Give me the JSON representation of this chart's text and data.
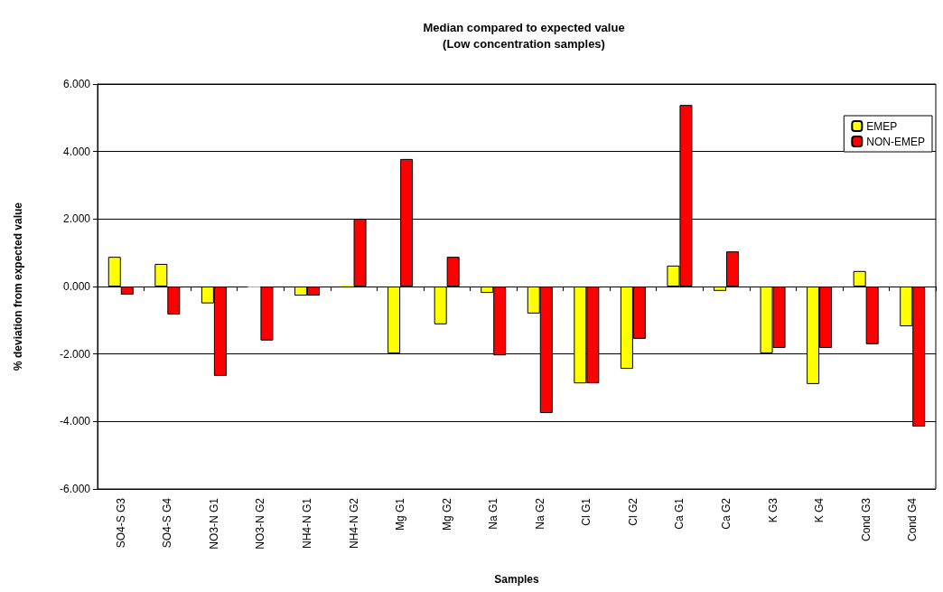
{
  "chart_data": {
    "type": "bar",
    "title": "Median compared to expected value\n(Low concentration samples)",
    "xlabel": "Samples",
    "ylabel": "% deviation from expected value",
    "categories": [
      "SO4-S G3",
      "SO4-S G4",
      "NO3-N G1",
      "NO3-N G2",
      "NH4-N G1",
      "NH4-N G2",
      "Mg G1",
      "Mg G2",
      "Na G1",
      "Na G2",
      "Cl G1",
      "Cl G2",
      "Ca G1",
      "Ca G2",
      "K G3",
      "K G4",
      "Cond G3",
      "Cond G4"
    ],
    "series": [
      {
        "name": "EMEP",
        "color": "#ffff00",
        "values": [
          0.88,
          0.67,
          -0.5,
          -0.02,
          -0.27,
          0.04,
          -1.98,
          -1.12,
          -0.19,
          -0.8,
          -2.87,
          -2.44,
          0.62,
          -0.13,
          -1.98,
          -2.89,
          0.46,
          -1.18
        ]
      },
      {
        "name": "NON-EMEP",
        "color": "#ff0000",
        "values": [
          -0.24,
          -0.83,
          -2.65,
          -1.6,
          -0.27,
          2.01,
          3.78,
          0.88,
          -2.04,
          -3.75,
          -2.87,
          -1.55,
          5.38,
          1.04,
          -1.82,
          -1.82,
          -1.71,
          -4.15
        ]
      }
    ],
    "ylim": [
      -6,
      6
    ],
    "yticks": [
      {
        "value": -6,
        "label": "-6.000"
      },
      {
        "value": -4,
        "label": "-4.000"
      },
      {
        "value": -2,
        "label": "-2.000"
      },
      {
        "value": 0,
        "label": "0.000"
      },
      {
        "value": 2,
        "label": "2.000"
      },
      {
        "value": 4,
        "label": "4.000"
      },
      {
        "value": 6,
        "label": "6.000"
      }
    ],
    "grid": "y",
    "legend": "top right"
  }
}
